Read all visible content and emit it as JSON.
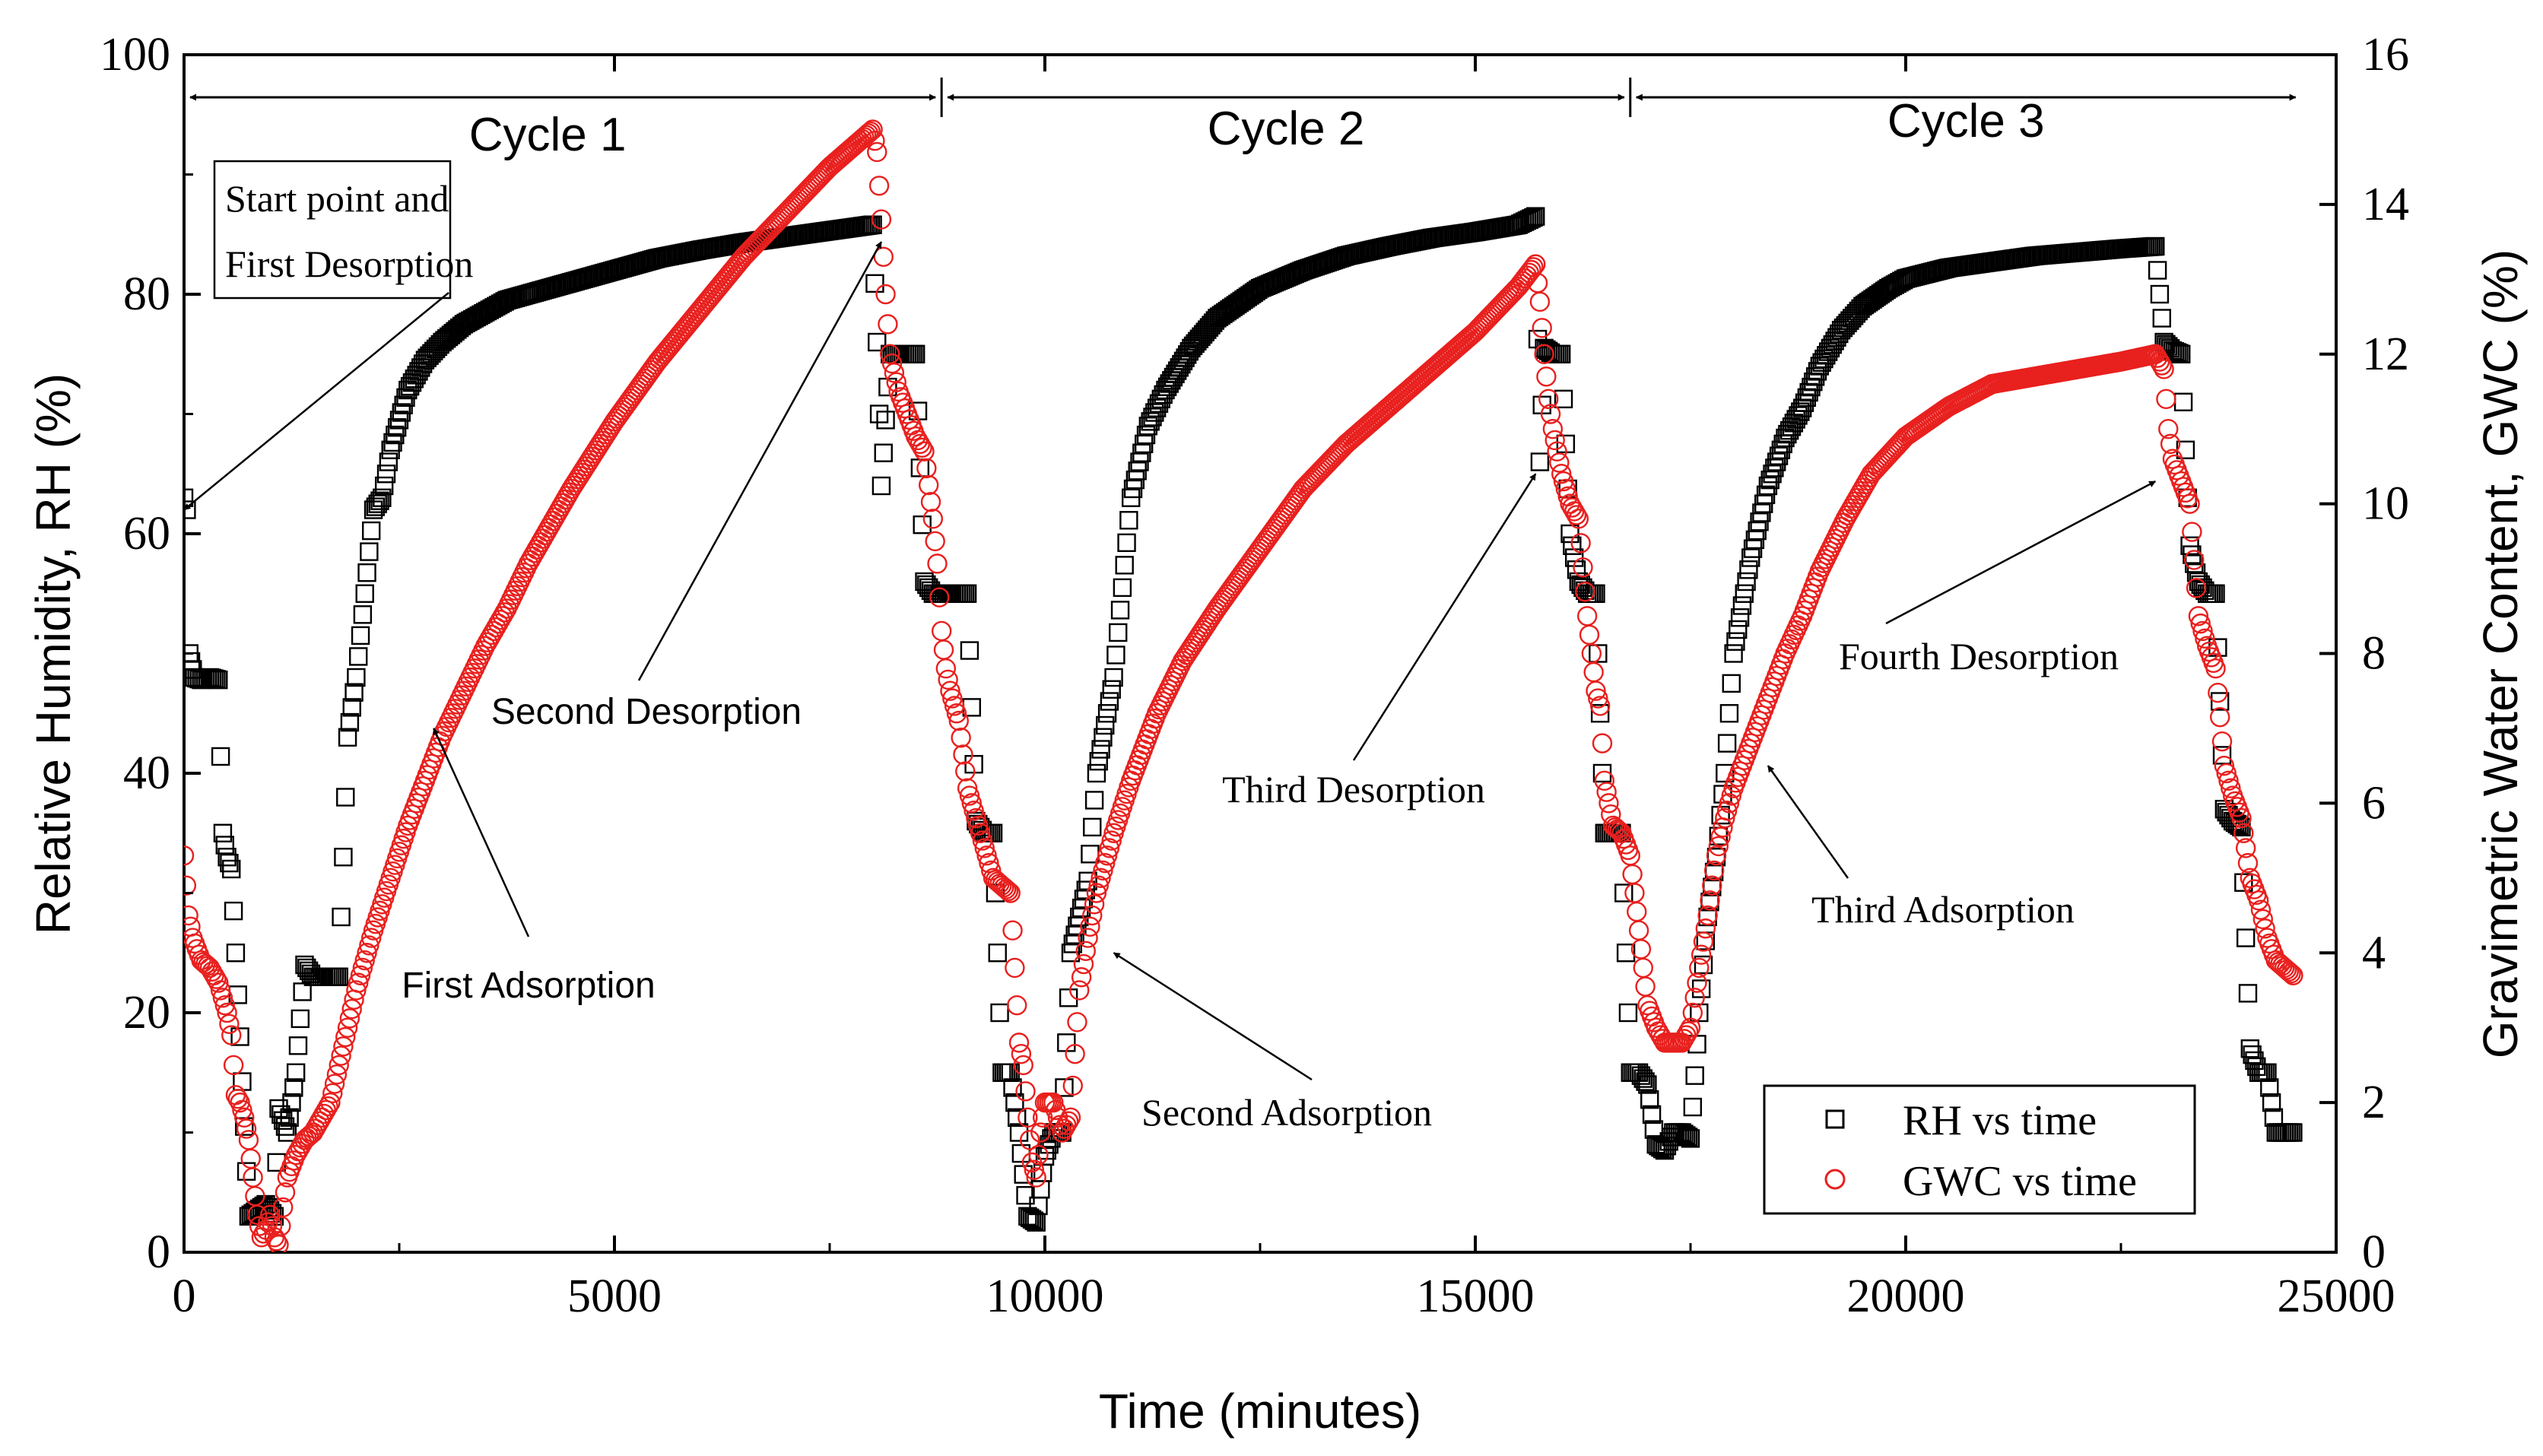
{
  "chart_data": {
    "type": "scatter",
    "title": "",
    "xlabel": "Time (minutes)",
    "ylabel_left": "Relative Humidity, RH (%)",
    "ylabel_right": "Gravimetric Water Content, GWC (%)",
    "xlim": [
      0,
      25000
    ],
    "ylim_left": [
      0,
      100
    ],
    "ylim_right": [
      0,
      16
    ],
    "xticks": [
      "0",
      "5000",
      "10000",
      "15000",
      "20000",
      "25000"
    ],
    "yticks_left": [
      "0",
      "20",
      "40",
      "60",
      "80",
      "100"
    ],
    "yticks_right": [
      "0",
      "2",
      "4",
      "6",
      "8",
      "10",
      "12",
      "14",
      "16"
    ],
    "grid": false,
    "legend": {
      "position": "bottom-right",
      "entries": [
        "RH vs time",
        "GWC vs time"
      ]
    },
    "cycles": [
      {
        "label": "Cycle 1",
        "x_start": 0,
        "x_end": 8800
      },
      {
        "label": "Cycle 2",
        "x_start": 8800,
        "x_end": 16800
      },
      {
        "label": "Cycle 3",
        "x_start": 16800,
        "x_end": 24600
      }
    ],
    "annotations": [
      {
        "text_lines": [
          "Start point and",
          "First Desorption"
        ],
        "boxed": true,
        "points_to": [
          0,
          62
        ]
      },
      {
        "text_lines": [
          "Second Desorption"
        ],
        "points_to": [
          8100,
          13.5
        ]
      },
      {
        "text_lines": [
          "First Adsorption"
        ],
        "points_to": [
          2900,
          7.0
        ]
      },
      {
        "text_lines": [
          "Third Desorption"
        ],
        "points_to": [
          15700,
          10.4
        ]
      },
      {
        "text_lines": [
          "Second Adsorption"
        ],
        "points_to": [
          10800,
          4.0
        ]
      },
      {
        "text_lines": [
          "Fourth Desorption"
        ],
        "points_to": [
          22900,
          10.3
        ]
      },
      {
        "text_lines": [
          "Third Adsorption"
        ],
        "points_to": [
          18400,
          6.5
        ]
      }
    ],
    "series": [
      {
        "name": "RH vs time",
        "axis": "left",
        "color": "#000000",
        "marker": "square-open",
        "points": [
          [
            0,
            63
          ],
          [
            30,
            62
          ],
          [
            60,
            50
          ],
          [
            120,
            48
          ],
          [
            200,
            47.8
          ],
          [
            300,
            48
          ],
          [
            400,
            47.8
          ],
          [
            450,
            35
          ],
          [
            500,
            33
          ],
          [
            550,
            32
          ],
          [
            650,
            18
          ],
          [
            750,
            3
          ],
          [
            850,
            3.5
          ],
          [
            950,
            4
          ],
          [
            1050,
            3
          ],
          [
            1100,
            12
          ],
          [
            1200,
            10
          ],
          [
            1300,
            15
          ],
          [
            1400,
            24
          ],
          [
            1500,
            23
          ],
          [
            1600,
            23
          ],
          [
            1700,
            23
          ],
          [
            1800,
            23
          ],
          [
            1900,
            43
          ],
          [
            2000,
            48
          ],
          [
            2100,
            55
          ],
          [
            2200,
            62
          ],
          [
            2300,
            63
          ],
          [
            2400,
            67
          ],
          [
            2600,
            72
          ],
          [
            2800,
            74.5
          ],
          [
            3000,
            76
          ],
          [
            3250,
            77.5
          ],
          [
            3500,
            78.5
          ],
          [
            3750,
            79.5
          ],
          [
            4000,
            80
          ],
          [
            4500,
            81
          ],
          [
            5000,
            82
          ],
          [
            5500,
            83
          ],
          [
            6000,
            83.7
          ],
          [
            6500,
            84.3
          ],
          [
            7000,
            84.8
          ],
          [
            7500,
            85.3
          ],
          [
            8000,
            85.8
          ],
          [
            8050,
            76
          ],
          [
            8100,
            64
          ],
          [
            8200,
            75
          ],
          [
            8400,
            75
          ],
          [
            8500,
            75
          ],
          [
            8600,
            56
          ],
          [
            8700,
            55
          ],
          [
            8800,
            55
          ],
          [
            9000,
            55
          ],
          [
            9100,
            55
          ],
          [
            9200,
            36
          ],
          [
            9300,
            35
          ],
          [
            9400,
            35
          ],
          [
            9500,
            15
          ],
          [
            9600,
            15
          ],
          [
            9700,
            10
          ],
          [
            9800,
            3
          ],
          [
            9900,
            2.5
          ],
          [
            10000,
            8
          ],
          [
            10100,
            10
          ],
          [
            10200,
            10
          ],
          [
            10300,
            25
          ],
          [
            10400,
            28
          ],
          [
            10500,
            31
          ],
          [
            10600,
            40
          ],
          [
            10800,
            48
          ],
          [
            11000,
            63
          ],
          [
            11200,
            69
          ],
          [
            11400,
            72
          ],
          [
            11700,
            75.5
          ],
          [
            12000,
            78
          ],
          [
            12500,
            80.5
          ],
          [
            13000,
            82
          ],
          [
            13500,
            83.2
          ],
          [
            14000,
            84
          ],
          [
            14500,
            84.7
          ],
          [
            15000,
            85.2
          ],
          [
            15500,
            85.8
          ],
          [
            15700,
            86.5
          ],
          [
            15750,
            66
          ],
          [
            15800,
            75.5
          ],
          [
            15900,
            75
          ],
          [
            16000,
            75
          ],
          [
            16100,
            60
          ],
          [
            16200,
            56
          ],
          [
            16300,
            55
          ],
          [
            16400,
            55
          ],
          [
            16500,
            35
          ],
          [
            16600,
            35
          ],
          [
            16700,
            35
          ],
          [
            16800,
            15
          ],
          [
            16900,
            15
          ],
          [
            17000,
            14
          ],
          [
            17100,
            9
          ],
          [
            17200,
            8.5
          ],
          [
            17300,
            10
          ],
          [
            17400,
            10
          ],
          [
            17500,
            9.5
          ],
          [
            17600,
            20
          ],
          [
            17700,
            28
          ],
          [
            17800,
            33
          ],
          [
            17900,
            40
          ],
          [
            18000,
            50
          ],
          [
            18200,
            58
          ],
          [
            18400,
            64
          ],
          [
            18600,
            68
          ],
          [
            18800,
            70.5
          ],
          [
            19000,
            74
          ],
          [
            19250,
            77
          ],
          [
            19500,
            79
          ],
          [
            19800,
            80.5
          ],
          [
            20000,
            81.3
          ],
          [
            20500,
            82.2
          ],
          [
            21000,
            82.7
          ],
          [
            21500,
            83.2
          ],
          [
            22000,
            83.5
          ],
          [
            22500,
            83.8
          ],
          [
            22900,
            84
          ],
          [
            23000,
            76
          ],
          [
            23100,
            75.3
          ],
          [
            23200,
            75
          ],
          [
            23300,
            59
          ],
          [
            23400,
            56
          ],
          [
            23500,
            55
          ],
          [
            23600,
            55
          ],
          [
            23700,
            37
          ],
          [
            23800,
            36
          ],
          [
            23900,
            35.5
          ],
          [
            24000,
            17
          ],
          [
            24100,
            15
          ],
          [
            24200,
            15
          ],
          [
            24300,
            10
          ],
          [
            24400,
            10
          ],
          [
            24500,
            10
          ]
        ]
      },
      {
        "name": "GWC vs time",
        "axis": "right",
        "color": "#e8201e",
        "marker": "circle-open",
        "points": [
          [
            0,
            5.3
          ],
          [
            50,
            4.5
          ],
          [
            100,
            4.2
          ],
          [
            200,
            3.9
          ],
          [
            300,
            3.8
          ],
          [
            400,
            3.6
          ],
          [
            500,
            3.2
          ],
          [
            550,
            2.9
          ],
          [
            600,
            2.1
          ],
          [
            650,
            2.0
          ],
          [
            700,
            1.8
          ],
          [
            750,
            1.5
          ],
          [
            800,
            1.0
          ],
          [
            850,
            0.5
          ],
          [
            900,
            0.2
          ],
          [
            950,
            0.3
          ],
          [
            1000,
            0.5
          ],
          [
            1050,
            0.2
          ],
          [
            1100,
            0.1
          ],
          [
            1150,
            0.6
          ],
          [
            1200,
            1.0
          ],
          [
            1300,
            1.3
          ],
          [
            1400,
            1.5
          ],
          [
            1500,
            1.6
          ],
          [
            1600,
            1.8
          ],
          [
            1700,
            2.0
          ],
          [
            1800,
            2.5
          ],
          [
            1900,
            3.0
          ],
          [
            2000,
            3.5
          ],
          [
            2200,
            4.3
          ],
          [
            2400,
            5.0
          ],
          [
            2600,
            5.7
          ],
          [
            2800,
            6.3
          ],
          [
            3000,
            6.9
          ],
          [
            3250,
            7.5
          ],
          [
            3500,
            8.1
          ],
          [
            3750,
            8.6
          ],
          [
            4000,
            9.2
          ],
          [
            4500,
            10.2
          ],
          [
            5000,
            11.1
          ],
          [
            5500,
            11.9
          ],
          [
            6000,
            12.6
          ],
          [
            6500,
            13.3
          ],
          [
            7000,
            13.9
          ],
          [
            7500,
            14.5
          ],
          [
            7800,
            14.8
          ],
          [
            8000,
            15.0
          ],
          [
            8050,
            14.7
          ],
          [
            8100,
            13.8
          ],
          [
            8150,
            12.8
          ],
          [
            8200,
            12.0
          ],
          [
            8300,
            11.5
          ],
          [
            8400,
            11.2
          ],
          [
            8500,
            10.9
          ],
          [
            8600,
            10.7
          ],
          [
            8700,
            9.8
          ],
          [
            8750,
            9.2
          ],
          [
            8800,
            8.3
          ],
          [
            8850,
            7.8
          ],
          [
            8900,
            7.5
          ],
          [
            8950,
            7.3
          ],
          [
            9000,
            7.1
          ],
          [
            9100,
            6.2
          ],
          [
            9200,
            5.8
          ],
          [
            9300,
            5.4
          ],
          [
            9400,
            5.0
          ],
          [
            9500,
            4.9
          ],
          [
            9600,
            4.8
          ],
          [
            9650,
            3.8
          ],
          [
            9700,
            2.8
          ],
          [
            9750,
            2.5
          ],
          [
            9800,
            1.8
          ],
          [
            9850,
            1.2
          ],
          [
            9900,
            1.0
          ],
          [
            9950,
            1.6
          ],
          [
            10000,
            2.0
          ],
          [
            10100,
            2.0
          ],
          [
            10200,
            1.6
          ],
          [
            10300,
            1.8
          ],
          [
            10400,
            3.5
          ],
          [
            10500,
            4.2
          ],
          [
            10600,
            4.8
          ],
          [
            10800,
            5.6
          ],
          [
            11000,
            6.3
          ],
          [
            11300,
            7.2
          ],
          [
            11600,
            7.9
          ],
          [
            12000,
            8.6
          ],
          [
            12500,
            9.4
          ],
          [
            13000,
            10.2
          ],
          [
            13500,
            10.8
          ],
          [
            14000,
            11.3
          ],
          [
            14500,
            11.8
          ],
          [
            15000,
            12.3
          ],
          [
            15500,
            12.9
          ],
          [
            15700,
            13.2
          ],
          [
            15750,
            12.7
          ],
          [
            15800,
            12.0
          ],
          [
            15850,
            11.4
          ],
          [
            15900,
            11.0
          ],
          [
            16000,
            10.4
          ],
          [
            16100,
            10.0
          ],
          [
            16200,
            9.8
          ],
          [
            16300,
            8.5
          ],
          [
            16400,
            7.5
          ],
          [
            16450,
            7.3
          ],
          [
            16500,
            6.3
          ],
          [
            16600,
            5.7
          ],
          [
            16700,
            5.6
          ],
          [
            16800,
            5.3
          ],
          [
            16850,
            4.8
          ],
          [
            16900,
            4.3
          ],
          [
            17000,
            3.3
          ],
          [
            17100,
            3.0
          ],
          [
            17200,
            2.8
          ],
          [
            17300,
            2.8
          ],
          [
            17400,
            2.8
          ],
          [
            17500,
            3.0
          ],
          [
            17600,
            3.8
          ],
          [
            17700,
            4.5
          ],
          [
            17800,
            5.3
          ],
          [
            17900,
            5.8
          ],
          [
            18000,
            6.2
          ],
          [
            18200,
            6.8
          ],
          [
            18400,
            7.4
          ],
          [
            18600,
            8.0
          ],
          [
            18800,
            8.5
          ],
          [
            19000,
            9.1
          ],
          [
            19300,
            9.8
          ],
          [
            19600,
            10.4
          ],
          [
            20000,
            10.9
          ],
          [
            20500,
            11.3
          ],
          [
            21000,
            11.6
          ],
          [
            21500,
            11.7
          ],
          [
            22000,
            11.8
          ],
          [
            22500,
            11.9
          ],
          [
            22900,
            12.0
          ],
          [
            23000,
            11.8
          ],
          [
            23050,
            11.0
          ],
          [
            23100,
            10.6
          ],
          [
            23200,
            10.3
          ],
          [
            23300,
            10.0
          ],
          [
            23400,
            8.5
          ],
          [
            23500,
            8.1
          ],
          [
            23600,
            7.8
          ],
          [
            23700,
            6.5
          ],
          [
            23800,
            6.1
          ],
          [
            23900,
            5.8
          ],
          [
            24000,
            5.0
          ],
          [
            24100,
            4.7
          ],
          [
            24200,
            4.2
          ],
          [
            24300,
            3.9
          ],
          [
            24400,
            3.8
          ],
          [
            24500,
            3.7
          ]
        ]
      }
    ]
  }
}
